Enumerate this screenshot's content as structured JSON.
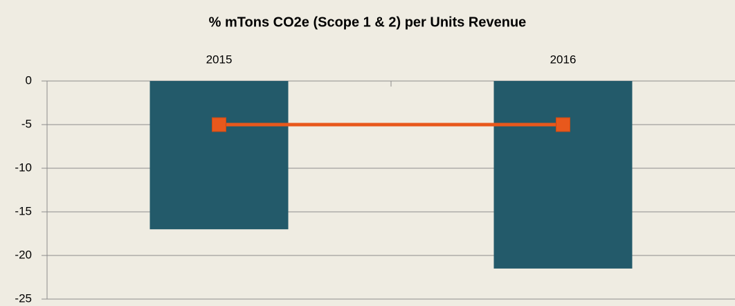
{
  "chart_data": {
    "type": "bar",
    "title": "% mTons CO2e (Scope 1 & 2) per Units Revenue",
    "categories": [
      "2015",
      "2016"
    ],
    "series": [
      {
        "type": "bar",
        "color": "#235a6a",
        "values": [
          -17,
          -21.5
        ]
      },
      {
        "type": "line",
        "color": "#e8581c",
        "values": [
          -5,
          -5
        ]
      }
    ],
    "ylim": [
      -25,
      0
    ],
    "yticks": [
      0,
      -5,
      -10,
      -15,
      -20,
      -25
    ],
    "grid": true,
    "category_axis_position": "top"
  }
}
